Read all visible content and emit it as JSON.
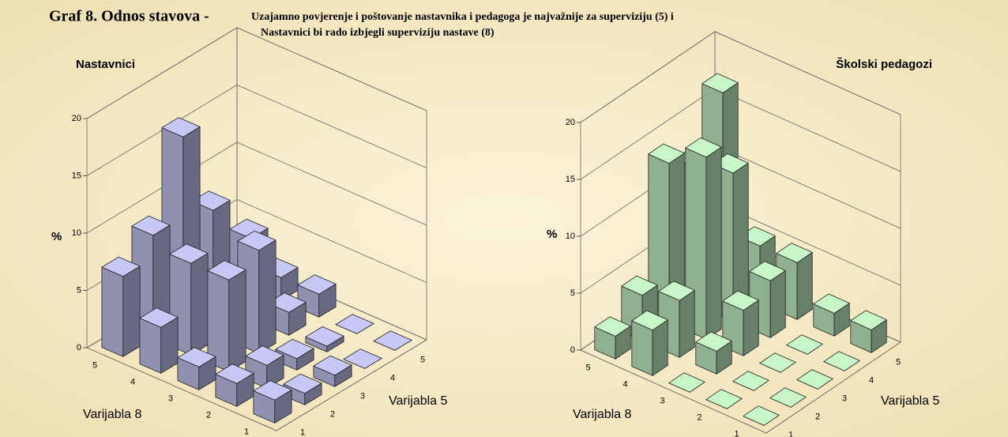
{
  "header": {
    "title": "Graf 8. Odnos stavova -",
    "subtitle_lines": [
      "Uzajamno povjerenje i poštovanje nastavnika i pedagoga je najvažnije za superviziju (5)  i",
      "Nastavnici bi rado izbjegli superviziju nastave (8)"
    ]
  },
  "chart_data": [
    {
      "type": "bar3d",
      "title": "Nastavnici",
      "zlabel": "%",
      "xlabel": "Varijabla 5",
      "ylabel": "Varijabla 8",
      "xcategories": [
        "1",
        "2",
        "3",
        "4",
        "5"
      ],
      "ycategories": [
        "1",
        "2",
        "3",
        "4",
        "5"
      ],
      "values": [
        [
          2,
          1,
          1,
          0,
          0
        ],
        [
          2,
          2,
          1,
          0.5,
          0
        ],
        [
          2,
          8,
          9,
          2,
          2
        ],
        [
          4,
          8,
          4,
          7,
          2
        ],
        [
          7,
          9,
          16,
          8,
          0.5
        ]
      ],
      "color": "#c8c8f6",
      "zlim": [
        0,
        20
      ],
      "zticks": [
        0,
        5,
        10,
        15,
        20
      ],
      "grid": true
    },
    {
      "type": "bar3d",
      "title": "Školski pedagozi",
      "zlabel": "%",
      "xlabel": "Varijabla 5",
      "ylabel": "Varijabla 8",
      "xcategories": [
        "1",
        "2",
        "3",
        "4",
        "5"
      ],
      "ycategories": [
        "1",
        "2",
        "3",
        "4",
        "5"
      ],
      "values": [
        [
          0,
          0,
          0,
          0,
          2
        ],
        [
          0,
          0,
          0,
          0,
          2
        ],
        [
          0,
          2,
          4,
          5,
          5
        ],
        [
          4,
          5,
          16,
          13,
          5
        ],
        [
          2,
          4,
          14,
          12,
          17
        ]
      ],
      "color": "#c8f6c8",
      "zlim": [
        0,
        20
      ],
      "zticks": [
        0,
        5,
        10,
        15,
        20
      ],
      "grid": true
    }
  ]
}
